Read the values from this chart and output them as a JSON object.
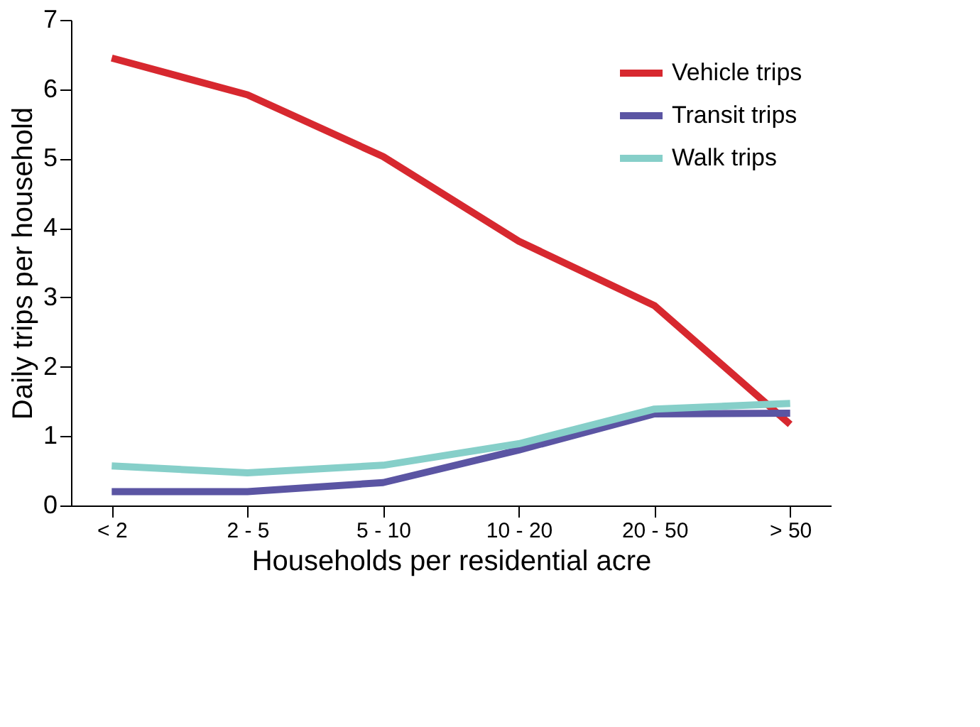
{
  "chart_data": {
    "type": "line",
    "xlabel": "Households per residential acre",
    "ylabel": "Daily trips per household",
    "categories": [
      "< 2",
      "2 - 5",
      "5 - 10",
      "10 - 20",
      "20 - 50",
      "> 50"
    ],
    "series": [
      {
        "name": "Vehicle trips",
        "color": "#d7282f",
        "values": [
          6.45,
          5.92,
          5.03,
          3.81,
          2.88,
          1.17
        ]
      },
      {
        "name": "Transit trips",
        "color": "#5b55a3",
        "values": [
          0.2,
          0.2,
          0.33,
          0.8,
          1.32,
          1.33
        ]
      },
      {
        "name": "Walk trips",
        "color": "#86cfc9",
        "values": [
          0.57,
          0.47,
          0.58,
          0.89,
          1.39,
          1.47
        ]
      }
    ],
    "ylim": [
      0,
      7
    ],
    "yticks": [
      0,
      1,
      2,
      3,
      4,
      5,
      6,
      7
    ],
    "grid": false,
    "legend": "top right",
    "marker": "none",
    "line_style": "solid"
  }
}
